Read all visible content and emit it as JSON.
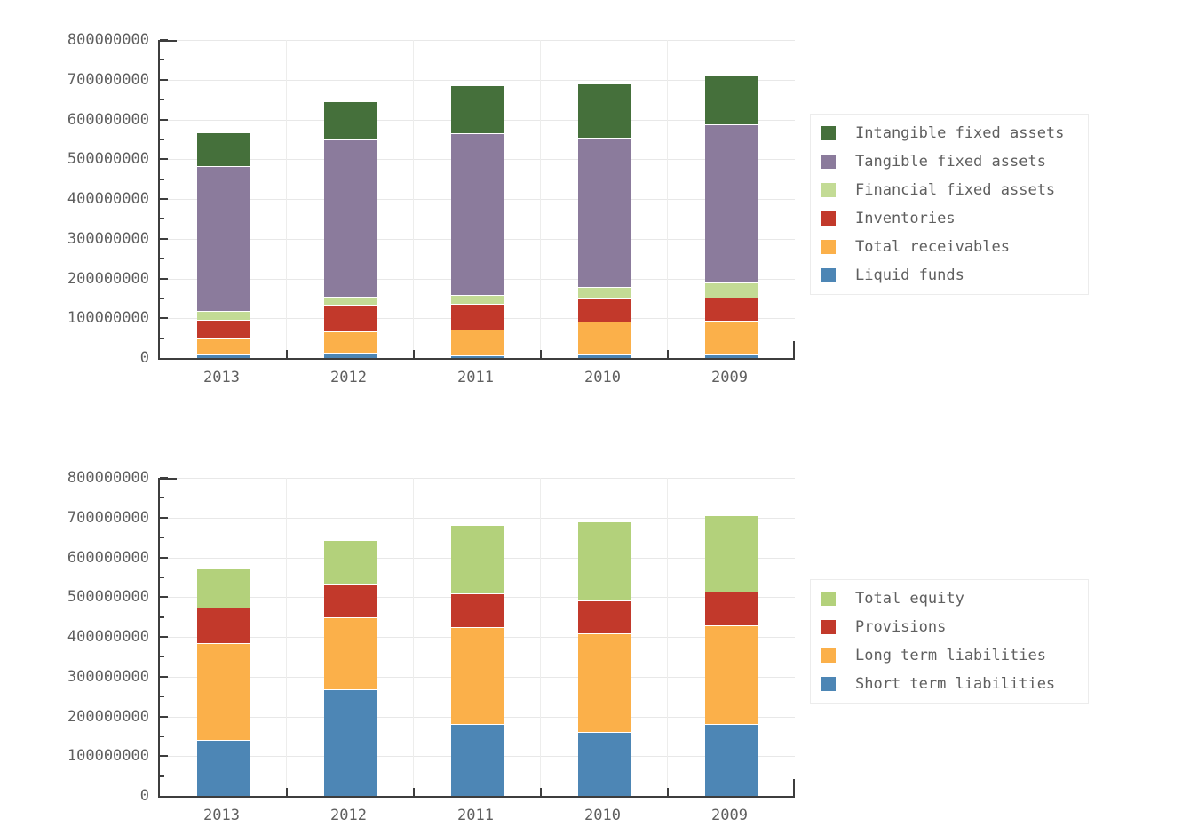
{
  "page": {
    "background": "#ffffff",
    "text_color": "#5f5f5f",
    "axis_color": "#3d3d3d",
    "grid_color": "#e8e8e8"
  },
  "chart_data": [
    {
      "type": "bar",
      "stacked": true,
      "title": "",
      "xlabel": "",
      "ylabel": "",
      "grid": true,
      "legend_position": "right",
      "categories": [
        "2013",
        "2012",
        "2011",
        "2010",
        "2009"
      ],
      "ylim": [
        0,
        800000000
      ],
      "ytick_step": 100000000,
      "ytick_minor_step": 50000000,
      "ytick_labels": [
        "0",
        "100000000",
        "200000000",
        "300000000",
        "400000000",
        "500000000",
        "600000000",
        "700000000",
        "800000000"
      ],
      "series": [
        {
          "name": "Liquid funds",
          "color": "#4d86b5",
          "values": [
            10000000,
            14000000,
            6000000,
            10000000,
            8000000
          ]
        },
        {
          "name": "Total receivables",
          "color": "#fbb04a",
          "values": [
            41000000,
            53000000,
            64000000,
            82000000,
            84000000
          ]
        },
        {
          "name": "Inventories",
          "color": "#c2392b",
          "values": [
            48000000,
            66000000,
            65000000,
            58000000,
            58000000
          ]
        },
        {
          "name": "Financial fixed assets",
          "color": "#c3db95",
          "values": [
            23000000,
            19000000,
            22000000,
            29000000,
            38000000
          ]
        },
        {
          "name": "Tangible fixed assets",
          "color": "#8b7b9c",
          "values": [
            365000000,
            395000000,
            406000000,
            375000000,
            397000000
          ]
        },
        {
          "name": "Intangible fixed assets",
          "color": "#45703b",
          "values": [
            83000000,
            94000000,
            119000000,
            133000000,
            121000000
          ]
        }
      ],
      "legend": [
        "Intangible fixed assets",
        "Tangible fixed assets",
        "Financial fixed assets",
        "Inventories",
        "Total receivables",
        "Liquid funds"
      ],
      "totals": [
        570000000,
        641000000,
        682000000,
        687000000,
        706000000
      ]
    },
    {
      "type": "bar",
      "stacked": true,
      "title": "",
      "xlabel": "",
      "ylabel": "",
      "grid": true,
      "legend_position": "right",
      "categories": [
        "2013",
        "2012",
        "2011",
        "2010",
        "2009"
      ],
      "ylim": [
        0,
        800000000
      ],
      "ytick_step": 100000000,
      "ytick_minor_step": 50000000,
      "ytick_labels": [
        "0",
        "100000000",
        "200000000",
        "300000000",
        "400000000",
        "500000000",
        "600000000",
        "700000000",
        "800000000"
      ],
      "series": [
        {
          "name": "Short term liabilities",
          "color": "#4d86b5",
          "values": [
            140000000,
            268000000,
            182000000,
            160000000,
            180000000
          ]
        },
        {
          "name": "Long term liabilities",
          "color": "#fbb04a",
          "values": [
            243000000,
            181000000,
            244000000,
            248000000,
            249000000
          ]
        },
        {
          "name": "Provisions",
          "color": "#c2392b",
          "values": [
            90000000,
            85000000,
            86000000,
            83000000,
            86000000
          ]
        },
        {
          "name": "Total equity",
          "color": "#b3d17b",
          "values": [
            97000000,
            107000000,
            170000000,
            196000000,
            191000000
          ]
        }
      ],
      "legend": [
        "Total equity",
        "Provisions",
        "Long term liabilities",
        "Short term liabilities"
      ],
      "totals": [
        570000000,
        641000000,
        682000000,
        687000000,
        706000000
      ]
    }
  ]
}
